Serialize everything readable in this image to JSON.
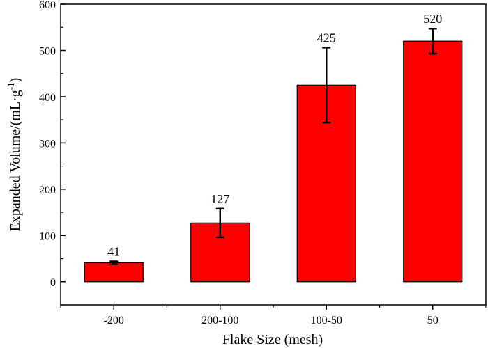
{
  "chart_data": {
    "type": "bar",
    "title": "",
    "categories": [
      "-200",
      "200-100",
      "100-50",
      "50"
    ],
    "values": [
      41,
      127,
      425,
      520
    ],
    "error_low": [
      3,
      31,
      81,
      27
    ],
    "error_high": [
      3,
      31,
      81,
      27
    ],
    "data_labels": [
      "41",
      "127",
      "425",
      "520"
    ],
    "xlabel": "Flake Size (mesh)",
    "ylabel_main": "Expanded Volume/(mL·g",
    "ylabel_sup": "-1",
    "ylabel_end": ")",
    "ylim": [
      -50,
      600
    ],
    "yticks": [
      0,
      100,
      200,
      300,
      400,
      500,
      600
    ],
    "grid": false,
    "legend": "none",
    "bar_color": "#ff0000",
    "edge_color": "#000000"
  }
}
